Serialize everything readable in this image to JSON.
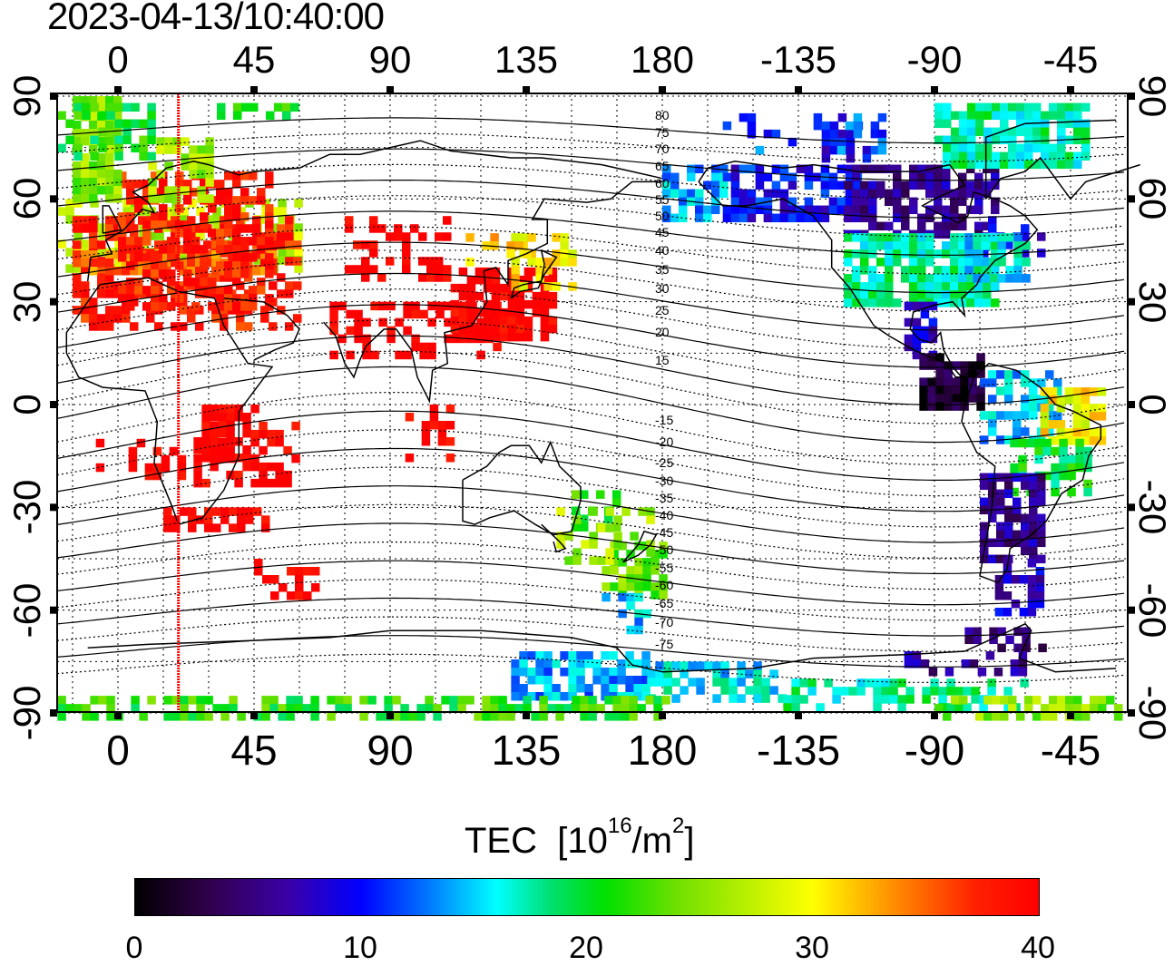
{
  "timestamp": "2023-04-13/10:40:00",
  "map": {
    "top_lon_labels": [
      "0",
      "45",
      "90",
      "135",
      "180",
      "-135",
      "-90",
      "-45"
    ],
    "bottom_lon_labels": [
      "0",
      "45",
      "90",
      "135",
      "180",
      "-135",
      "-90",
      "-45"
    ],
    "left_lat_labels": [
      "90",
      "60",
      "30",
      "0",
      "-30",
      "-60",
      "-90"
    ],
    "right_lat_labels": [
      "90",
      "60",
      "30",
      "0",
      "-30",
      "-60",
      "-90"
    ],
    "mag_lat_labels": [
      "80",
      "75",
      "70",
      "65",
      "60",
      "55",
      "50",
      "45",
      "40",
      "35",
      "30",
      "25",
      "20",
      "15",
      "-15",
      "-20",
      "-25",
      "-30",
      "-35",
      "-40",
      "-45",
      "-50",
      "-55",
      "-60",
      "-65",
      "-70",
      "-75"
    ],
    "marker_longitude": 20,
    "marker_color": "#ff0000"
  },
  "colorbar": {
    "title": "TEC",
    "unit_open": "[10",
    "unit_exp": "16",
    "unit_mid": "/m",
    "unit_exp2": "2",
    "unit_close": "]",
    "min": 0,
    "max": 40,
    "tick_labels": [
      "0",
      "10",
      "20",
      "30",
      "40"
    ]
  }
}
